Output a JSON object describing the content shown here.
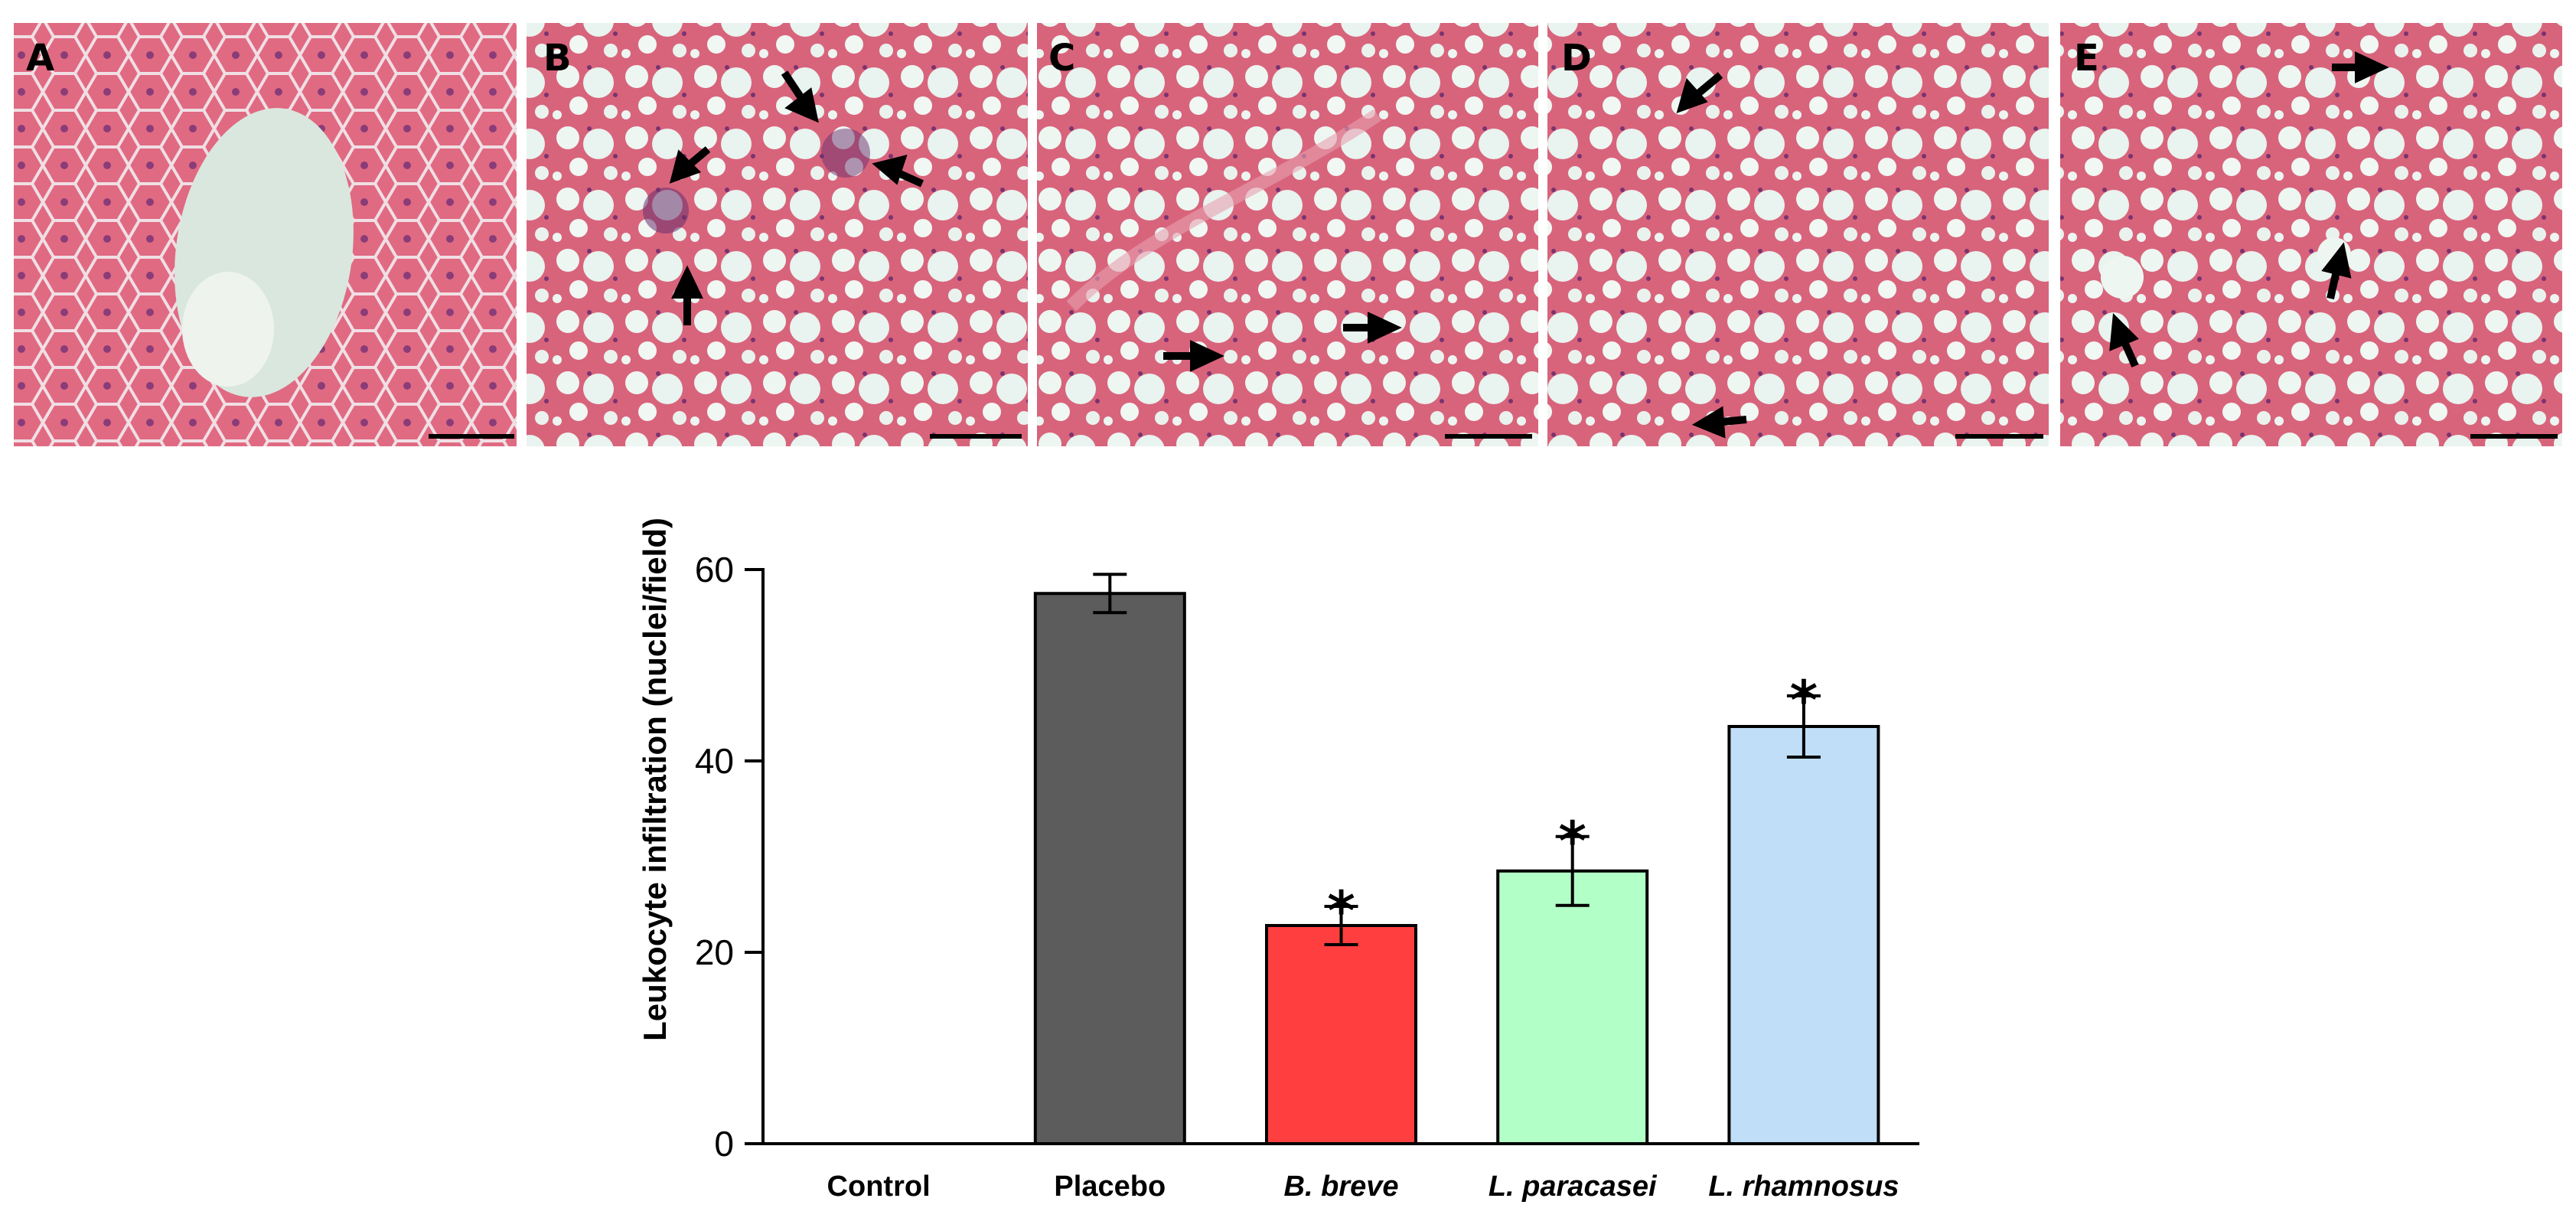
{
  "panels": [
    {
      "label": "A",
      "tone": "normal"
    },
    {
      "label": "B",
      "tone": "steatotic"
    },
    {
      "label": "C",
      "tone": "steatotic"
    },
    {
      "label": "D",
      "tone": "steatotic"
    },
    {
      "label": "E",
      "tone": "steatotic"
    }
  ],
  "colors": {
    "tissue_base": "#d9607a",
    "tissue_dark": "#c84a68",
    "vacuole": "#eef5ef",
    "sinusoid": "#e8eef0",
    "nucleus": "#6a2f6e",
    "arrow": "#000000"
  },
  "chart_data": {
    "type": "bar",
    "ylabel": "Leukocyte infiltration (nuclei/field)",
    "ylim": [
      0,
      60
    ],
    "yticks": [
      "0",
      "20",
      "40",
      "60"
    ],
    "categories": [
      "Control",
      "Placebo",
      "B. breve",
      "L. paracasei",
      "L. rhamnosus"
    ],
    "italic_categories": [
      false,
      false,
      true,
      true,
      true
    ],
    "values": [
      0,
      57.5,
      22.8,
      28.5,
      43.6
    ],
    "errors": [
      0,
      2.0,
      2.0,
      3.6,
      3.2
    ],
    "significance": [
      "",
      "",
      "*",
      "*",
      "*"
    ],
    "bar_colors": [
      "#ffffff",
      "#5c5c5c",
      "#ff3f3f",
      "#b3ffc8",
      "#c0def8"
    ]
  }
}
